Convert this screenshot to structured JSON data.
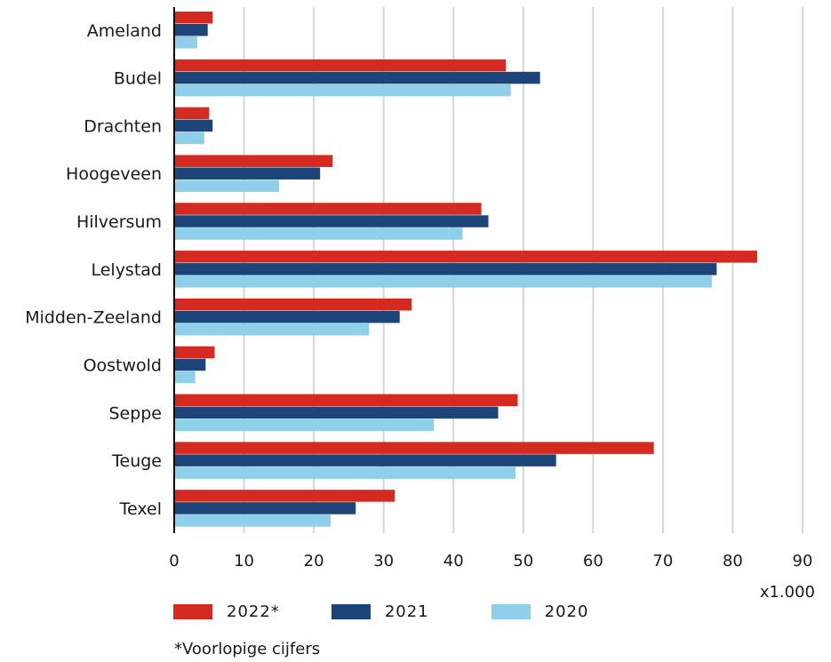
{
  "chart_data": {
    "type": "bar",
    "orientation": "horizontal",
    "categories": [
      "Ameland",
      "Budel",
      "Drachten",
      "Hoogeveen",
      "Hilversum",
      "Lelystad",
      "Midden-Zeeland",
      "Oostwold",
      "Seppe",
      "Teuge",
      "Texel"
    ],
    "series": [
      {
        "name": "2022*",
        "color": "#d42a20",
        "values": [
          5.5,
          47.5,
          5.0,
          22.7,
          44.0,
          83.5,
          34.0,
          5.8,
          49.2,
          68.7,
          31.6
        ]
      },
      {
        "name": "2021",
        "color": "#1b4478",
        "values": [
          4.8,
          52.4,
          5.5,
          20.9,
          45.0,
          77.7,
          32.3,
          4.5,
          46.4,
          54.7,
          26.0
        ]
      },
      {
        "name": "2020",
        "color": "#8ecfea",
        "values": [
          3.3,
          48.2,
          4.3,
          15.0,
          41.3,
          77.0,
          27.9,
          3.0,
          37.2,
          48.9,
          22.4
        ]
      }
    ],
    "xticks": [
      "0",
      "10",
      "20",
      "30",
      "40",
      "50",
      "60",
      "70",
      "80",
      "90"
    ],
    "xlim": [
      0,
      90
    ],
    "unit_label": "x1.000",
    "footnote": "*Voorlopige cijfers",
    "grid": "vertical",
    "legend_position": "bottom"
  }
}
